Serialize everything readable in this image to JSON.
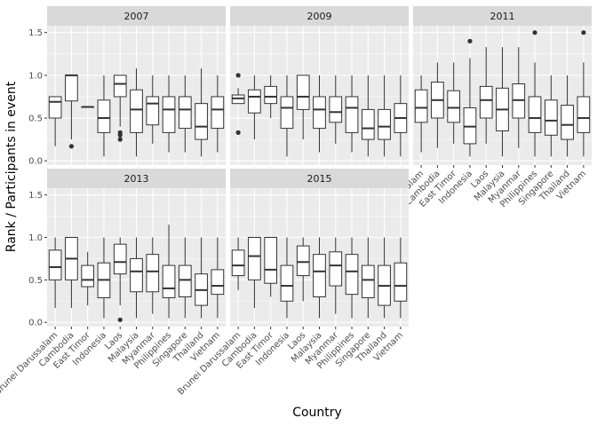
{
  "chart_data": {
    "type": "boxplot",
    "xlabel": "Country",
    "ylabel": "Rank / Participants in event",
    "ylim": [
      -0.05,
      1.58
    ],
    "yticks": [
      0.0,
      0.5,
      1.0,
      1.5
    ],
    "ytick_labels": [
      "0.0",
      "0.5",
      "1.0",
      "1.5"
    ],
    "categories": [
      "Brunei Darussalam",
      "Cambodia",
      "East Timor",
      "Indonesia",
      "Laos",
      "Malaysia",
      "Myanmar",
      "Philippines",
      "Singapore",
      "Thailand",
      "Vietnam"
    ],
    "facets": [
      {
        "label": "2007",
        "boxes": [
          {
            "country": "Brunei Darussalam",
            "min": 0.17,
            "q1": 0.5,
            "median": 0.69,
            "q3": 0.75,
            "max": 0.75,
            "outliers": []
          },
          {
            "country": "Cambodia",
            "min": 0.25,
            "q1": 0.7,
            "median": 1.0,
            "q3": 1.0,
            "max": 1.0,
            "outliers": [
              0.17
            ]
          },
          {
            "country": "East Timor",
            "min": 0.63,
            "q1": 0.63,
            "median": 0.63,
            "q3": 0.63,
            "max": 0.63,
            "outliers": []
          },
          {
            "country": "Indonesia",
            "min": 0.05,
            "q1": 0.33,
            "median": 0.5,
            "q3": 0.71,
            "max": 1.0,
            "outliers": []
          },
          {
            "country": "Laos",
            "min": 0.4,
            "q1": 0.75,
            "median": 0.9,
            "q3": 1.0,
            "max": 1.0,
            "outliers": [
              0.25,
              0.3,
              0.33
            ]
          },
          {
            "country": "Malaysia",
            "min": 0.05,
            "q1": 0.33,
            "median": 0.6,
            "q3": 0.83,
            "max": 1.08,
            "outliers": []
          },
          {
            "country": "Myanmar",
            "min": 0.2,
            "q1": 0.42,
            "median": 0.67,
            "q3": 0.75,
            "max": 1.0,
            "outliers": []
          },
          {
            "country": "Philippines",
            "min": 0.1,
            "q1": 0.33,
            "median": 0.6,
            "q3": 0.75,
            "max": 1.0,
            "outliers": []
          },
          {
            "country": "Singapore",
            "min": 0.1,
            "q1": 0.38,
            "median": 0.6,
            "q3": 0.75,
            "max": 1.0,
            "outliers": []
          },
          {
            "country": "Thailand",
            "min": 0.05,
            "q1": 0.25,
            "median": 0.4,
            "q3": 0.67,
            "max": 1.08,
            "outliers": []
          },
          {
            "country": "Vietnam",
            "min": 0.1,
            "q1": 0.38,
            "median": 0.6,
            "q3": 0.75,
            "max": 1.0,
            "outliers": []
          }
        ]
      },
      {
        "label": "2009",
        "boxes": [
          {
            "country": "Brunei Darussalam",
            "min": 0.67,
            "q1": 0.67,
            "median": 0.73,
            "q3": 0.77,
            "max": 0.85,
            "outliers": [
              0.33,
              1.0
            ]
          },
          {
            "country": "Cambodia",
            "min": 0.25,
            "q1": 0.56,
            "median": 0.75,
            "q3": 0.83,
            "max": 1.0,
            "outliers": []
          },
          {
            "country": "East Timor",
            "min": 0.5,
            "q1": 0.67,
            "median": 0.75,
            "q3": 0.87,
            "max": 1.0,
            "outliers": []
          },
          {
            "country": "Indonesia",
            "min": 0.05,
            "q1": 0.38,
            "median": 0.62,
            "q3": 0.75,
            "max": 1.0,
            "outliers": []
          },
          {
            "country": "Laos",
            "min": 0.25,
            "q1": 0.6,
            "median": 0.75,
            "q3": 1.0,
            "max": 1.0,
            "outliers": []
          },
          {
            "country": "Malaysia",
            "min": 0.1,
            "q1": 0.38,
            "median": 0.6,
            "q3": 0.75,
            "max": 1.0,
            "outliers": []
          },
          {
            "country": "Myanmar",
            "min": 0.2,
            "q1": 0.45,
            "median": 0.57,
            "q3": 0.75,
            "max": 1.0,
            "outliers": []
          },
          {
            "country": "Philippines",
            "min": 0.1,
            "q1": 0.33,
            "median": 0.62,
            "q3": 0.75,
            "max": 1.0,
            "outliers": []
          },
          {
            "country": "Singapore",
            "min": 0.05,
            "q1": 0.25,
            "median": 0.38,
            "q3": 0.6,
            "max": 1.0,
            "outliers": []
          },
          {
            "country": "Thailand",
            "min": 0.05,
            "q1": 0.25,
            "median": 0.4,
            "q3": 0.6,
            "max": 1.0,
            "outliers": []
          },
          {
            "country": "Vietnam",
            "min": 0.05,
            "q1": 0.33,
            "median": 0.5,
            "q3": 0.67,
            "max": 1.0,
            "outliers": []
          }
        ]
      },
      {
        "label": "2011",
        "boxes": [
          {
            "country": "Brunei Darussalam",
            "min": 0.1,
            "q1": 0.45,
            "median": 0.62,
            "q3": 0.83,
            "max": 1.0,
            "outliers": []
          },
          {
            "country": "Cambodia",
            "min": 0.15,
            "q1": 0.5,
            "median": 0.71,
            "q3": 0.92,
            "max": 1.15,
            "outliers": []
          },
          {
            "country": "East Timor",
            "min": 0.2,
            "q1": 0.45,
            "median": 0.62,
            "q3": 0.82,
            "max": 1.15,
            "outliers": []
          },
          {
            "country": "Indonesia",
            "min": 0.05,
            "q1": 0.2,
            "median": 0.4,
            "q3": 0.62,
            "max": 1.2,
            "outliers": [
              1.4
            ]
          },
          {
            "country": "Laos",
            "min": 0.2,
            "q1": 0.5,
            "median": 0.71,
            "q3": 0.87,
            "max": 1.33,
            "outliers": []
          },
          {
            "country": "Malaysia",
            "min": 0.05,
            "q1": 0.35,
            "median": 0.6,
            "q3": 0.85,
            "max": 1.33,
            "outliers": []
          },
          {
            "country": "Myanmar",
            "min": 0.15,
            "q1": 0.5,
            "median": 0.71,
            "q3": 0.9,
            "max": 1.33,
            "outliers": []
          },
          {
            "country": "Philippines",
            "min": 0.05,
            "q1": 0.33,
            "median": 0.5,
            "q3": 0.75,
            "max": 1.15,
            "outliers": [
              1.5
            ]
          },
          {
            "country": "Singapore",
            "min": 0.05,
            "q1": 0.3,
            "median": 0.47,
            "q3": 0.71,
            "max": 1.0,
            "outliers": []
          },
          {
            "country": "Thailand",
            "min": 0.05,
            "q1": 0.25,
            "median": 0.42,
            "q3": 0.65,
            "max": 1.0,
            "outliers": []
          },
          {
            "country": "Vietnam",
            "min": 0.05,
            "q1": 0.33,
            "median": 0.5,
            "q3": 0.75,
            "max": 1.15,
            "outliers": [
              1.5
            ]
          }
        ]
      },
      {
        "label": "2013",
        "boxes": [
          {
            "country": "Brunei Darussalam",
            "min": 0.17,
            "q1": 0.5,
            "median": 0.65,
            "q3": 0.85,
            "max": 1.0,
            "outliers": []
          },
          {
            "country": "Cambodia",
            "min": 0.17,
            "q1": 0.5,
            "median": 0.75,
            "q3": 1.0,
            "max": 1.0,
            "outliers": []
          },
          {
            "country": "East Timor",
            "min": 0.2,
            "q1": 0.42,
            "median": 0.5,
            "q3": 0.67,
            "max": 0.83,
            "outliers": []
          },
          {
            "country": "Indonesia",
            "min": 0.05,
            "q1": 0.29,
            "median": 0.5,
            "q3": 0.7,
            "max": 1.0,
            "outliers": []
          },
          {
            "country": "Laos",
            "min": 0.2,
            "q1": 0.57,
            "median": 0.71,
            "q3": 0.92,
            "max": 1.0,
            "outliers": [
              0.03
            ]
          },
          {
            "country": "Malaysia",
            "min": 0.05,
            "q1": 0.36,
            "median": 0.6,
            "q3": 0.75,
            "max": 1.0,
            "outliers": []
          },
          {
            "country": "Myanmar",
            "min": 0.1,
            "q1": 0.36,
            "median": 0.6,
            "q3": 0.8,
            "max": 1.0,
            "outliers": []
          },
          {
            "country": "Philippines",
            "min": 0.05,
            "q1": 0.29,
            "median": 0.4,
            "q3": 0.67,
            "max": 1.15,
            "outliers": []
          },
          {
            "country": "Singapore",
            "min": 0.05,
            "q1": 0.3,
            "median": 0.5,
            "q3": 0.67,
            "max": 1.0,
            "outliers": []
          },
          {
            "country": "Thailand",
            "min": 0.05,
            "q1": 0.2,
            "median": 0.38,
            "q3": 0.57,
            "max": 1.0,
            "outliers": []
          },
          {
            "country": "Vietnam",
            "min": 0.05,
            "q1": 0.33,
            "median": 0.43,
            "q3": 0.62,
            "max": 1.0,
            "outliers": []
          }
        ]
      },
      {
        "label": "2015",
        "boxes": [
          {
            "country": "Brunei Darussalam",
            "min": 0.38,
            "q1": 0.55,
            "median": 0.67,
            "q3": 0.85,
            "max": 1.0,
            "outliers": []
          },
          {
            "country": "Cambodia",
            "min": 0.17,
            "q1": 0.5,
            "median": 0.78,
            "q3": 1.0,
            "max": 1.0,
            "outliers": []
          },
          {
            "country": "East Timor",
            "min": 0.3,
            "q1": 0.46,
            "median": 0.62,
            "q3": 1.0,
            "max": 1.0,
            "outliers": []
          },
          {
            "country": "Indonesia",
            "min": 0.05,
            "q1": 0.25,
            "median": 0.43,
            "q3": 0.67,
            "max": 1.0,
            "outliers": []
          },
          {
            "country": "Laos",
            "min": 0.25,
            "q1": 0.55,
            "median": 0.71,
            "q3": 0.9,
            "max": 1.0,
            "outliers": []
          },
          {
            "country": "Malaysia",
            "min": 0.05,
            "q1": 0.3,
            "median": 0.6,
            "q3": 0.8,
            "max": 1.0,
            "outliers": []
          },
          {
            "country": "Myanmar",
            "min": 0.1,
            "q1": 0.43,
            "median": 0.67,
            "q3": 0.83,
            "max": 1.0,
            "outliers": []
          },
          {
            "country": "Philippines",
            "min": 0.05,
            "q1": 0.33,
            "median": 0.6,
            "q3": 0.8,
            "max": 1.0,
            "outliers": []
          },
          {
            "country": "Singapore",
            "min": 0.05,
            "q1": 0.29,
            "median": 0.5,
            "q3": 0.67,
            "max": 1.0,
            "outliers": []
          },
          {
            "country": "Thailand",
            "min": 0.05,
            "q1": 0.2,
            "median": 0.43,
            "q3": 0.67,
            "max": 1.0,
            "outliers": []
          },
          {
            "country": "Vietnam",
            "min": 0.05,
            "q1": 0.25,
            "median": 0.43,
            "q3": 0.7,
            "max": 1.0,
            "outliers": []
          }
        ]
      }
    ],
    "colors": {
      "panel_bg": "#ebebeb",
      "strip_bg": "#d9d9d9",
      "grid": "#ffffff",
      "box_fill": "#ffffff",
      "box_stroke": "#333333",
      "tick_label": "#4d4d4d"
    }
  }
}
